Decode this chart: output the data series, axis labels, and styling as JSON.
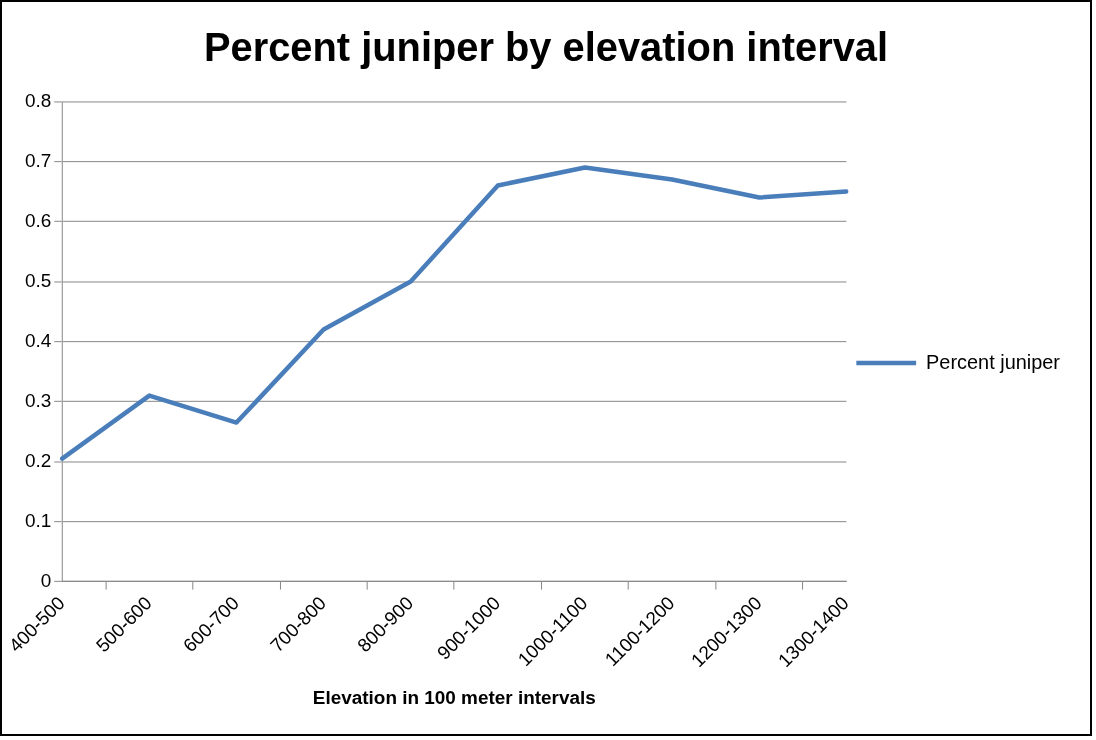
{
  "chart_data": {
    "type": "line",
    "title": "Percent juniper by elevation interval",
    "xlabel": "Elevation in 100 meter intervals",
    "categories": [
      "400-500",
      "500-600",
      "600-700",
      "700-800",
      "800-900",
      "900-1000",
      "1000-1100",
      "1100-1200",
      "1200-1300",
      "1300-1400"
    ],
    "series": [
      {
        "name": "Percent juniper",
        "color": "#4a7ebb",
        "values": [
          0.205,
          0.31,
          0.265,
          0.42,
          0.5,
          0.66,
          0.69,
          0.67,
          0.64,
          0.65
        ]
      }
    ],
    "ylim": [
      0,
      0.8
    ],
    "yticks": [
      0,
      0.1,
      0.2,
      0.3,
      0.4,
      0.5,
      0.6,
      0.7,
      0.8
    ],
    "grid": "y",
    "legend": "right",
    "marker": "none",
    "line_style": "solid"
  }
}
